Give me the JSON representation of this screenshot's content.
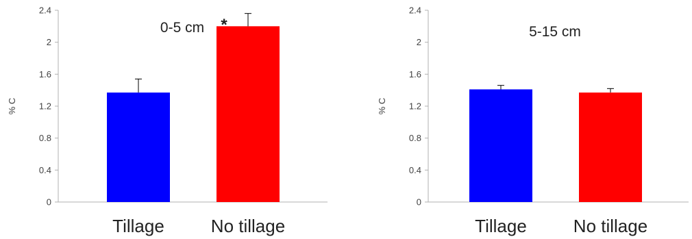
{
  "colors": {
    "tillage": "#0000FF",
    "no_tillage": "#FF0000",
    "axis": "#B0B0B0",
    "errorbar": "#000000"
  },
  "chart_data": [
    {
      "type": "bar",
      "title": "0-5 cm",
      "ylabel": "% C",
      "ylim": [
        0,
        2.4
      ],
      "yticks": [
        "0",
        "0.4",
        "0.8",
        "1.2",
        "1.6",
        "2",
        "2.4"
      ],
      "categories": [
        "Tillage",
        "No tillage"
      ],
      "values": [
        1.37,
        2.2
      ],
      "errors": [
        0.17,
        0.16
      ],
      "annotations": [
        "",
        "*"
      ]
    },
    {
      "type": "bar",
      "title": "5-15 cm",
      "ylabel": "% C",
      "ylim": [
        0,
        2.4
      ],
      "yticks": [
        "0",
        "0.4",
        "0.8",
        "1.2",
        "1.6",
        "2",
        "2.4"
      ],
      "categories": [
        "Tillage",
        "No tillage"
      ],
      "values": [
        1.41,
        1.37
      ],
      "errors": [
        0.05,
        0.05
      ],
      "annotations": [
        "",
        ""
      ]
    }
  ]
}
